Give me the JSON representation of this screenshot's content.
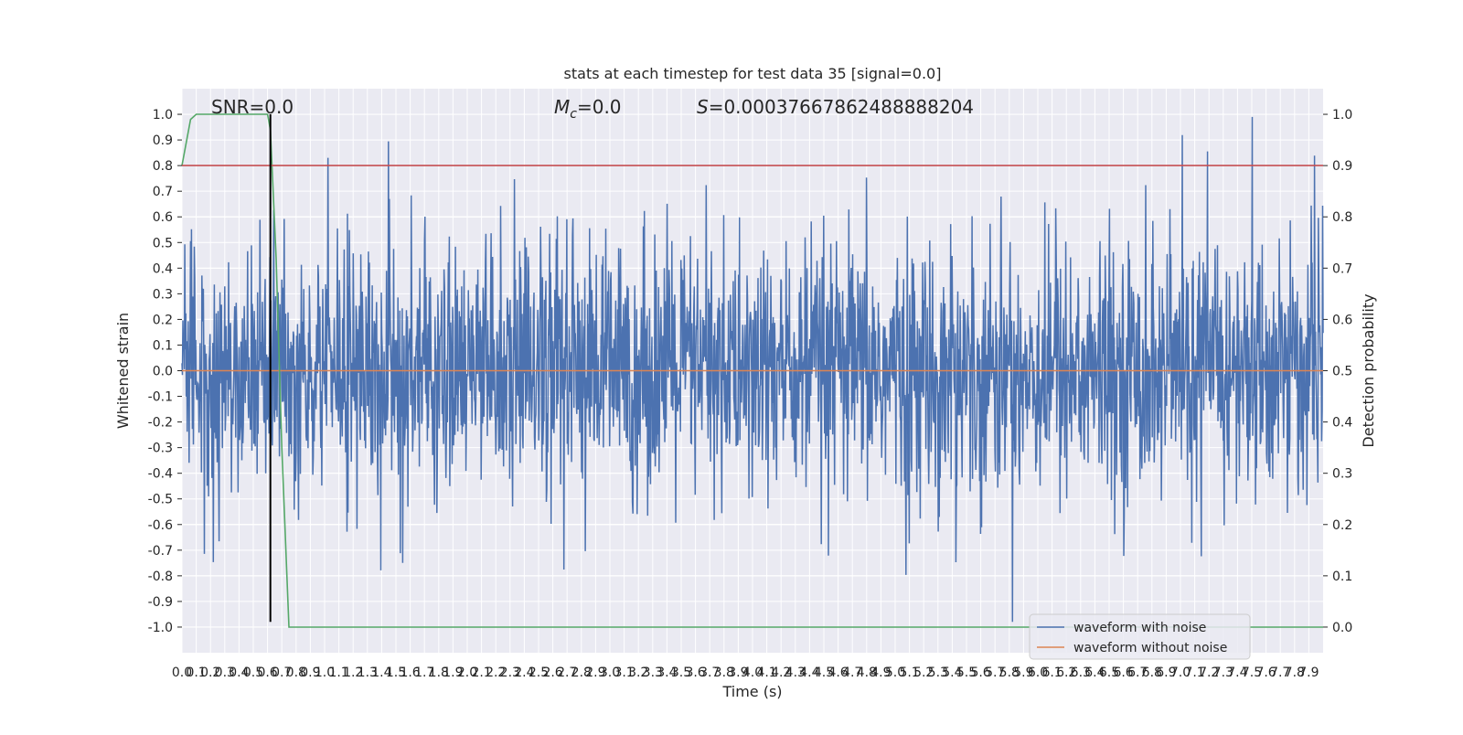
{
  "chart_data": {
    "type": "line",
    "title": "stats at each timestep for test data 35 [signal=0.0]",
    "xlabel": "Time (s)",
    "ylabel": "Whitened strain",
    "y2label": "Detection probability",
    "xlim": [
      0.0,
      8.0
    ],
    "ylim": [
      -1.1,
      1.1
    ],
    "y2lim": [
      -0.05,
      1.05
    ],
    "grid": true,
    "legend_position": "lower-right",
    "annotations": {
      "snr": "SNR=0.0",
      "mc_symbol": "M",
      "mc_sub": "c",
      "mc_value": "=0.0",
      "s_symbol": "S",
      "s_value": "=0.00037667862488888204"
    },
    "x_ticks": [
      "0.0",
      "0.1",
      "0.2",
      "0.3",
      "0.4",
      "0.5",
      "0.6",
      "0.7",
      "0.8",
      "0.9",
      "1.0",
      "1.1",
      "1.2",
      "1.3",
      "1.4",
      "1.5",
      "1.6",
      "1.7",
      "1.8",
      "1.9",
      "2.0",
      "2.1",
      "2.2",
      "2.3",
      "2.4",
      "2.5",
      "2.6",
      "2.7",
      "2.8",
      "2.9",
      "3.0",
      "3.1",
      "3.2",
      "3.3",
      "3.4",
      "3.5",
      "3.6",
      "3.7",
      "3.8",
      "3.9",
      "4.0",
      "4.1",
      "4.2",
      "4.3",
      "4.4",
      "4.5",
      "4.6",
      "4.7",
      "4.8",
      "4.9",
      "5.0",
      "5.1",
      "5.2",
      "5.3",
      "5.4",
      "5.5",
      "5.6",
      "5.7",
      "5.8",
      "5.9",
      "6.0",
      "6.1",
      "6.2",
      "6.3",
      "6.4",
      "6.5",
      "6.6",
      "6.7",
      "6.8",
      "6.9",
      "7.0",
      "7.1",
      "7.2",
      "7.3",
      "7.4",
      "7.5",
      "7.6",
      "7.7",
      "7.8",
      "7.9"
    ],
    "y_ticks": [
      "-1.0",
      "-0.9",
      "-0.8",
      "-0.7",
      "-0.6",
      "-0.5",
      "-0.4",
      "-0.3",
      "-0.2",
      "-0.1",
      "0.0",
      "0.1",
      "0.2",
      "0.3",
      "0.4",
      "0.5",
      "0.6",
      "0.7",
      "0.8",
      "0.9",
      "1.0"
    ],
    "y2_ticks": [
      "0.0",
      "0.1",
      "0.2",
      "0.3",
      "0.4",
      "0.5",
      "0.6",
      "0.7",
      "0.8",
      "0.9",
      "1.0"
    ],
    "series": [
      {
        "name": "waveform with noise",
        "axis": "left",
        "color": "#4c72b0",
        "style": "dense noise, peaks to about ±1.0"
      },
      {
        "name": "waveform without noise",
        "axis": "left",
        "color": "#dd8452",
        "x": [
          0.0,
          8.0
        ],
        "y": [
          0.0,
          0.0
        ]
      },
      {
        "axis": "right",
        "color": "#55a868",
        "x": [
          0.0,
          0.06,
          0.1,
          0.2,
          0.3,
          0.4,
          0.5,
          0.6,
          0.62,
          0.66,
          0.7,
          0.75,
          1.0,
          2.0,
          4.0,
          6.0,
          8.0
        ],
        "y": [
          0.9,
          0.99,
          1.0,
          1.0,
          1.0,
          1.0,
          1.0,
          1.0,
          0.97,
          0.72,
          0.35,
          0.0,
          0.0,
          0.0,
          0.0,
          0.0,
          0.0
        ]
      },
      {
        "axis": "right",
        "color": "#c44e52",
        "x": [
          0.0,
          8.0
        ],
        "y": [
          0.9,
          0.9
        ]
      },
      {
        "axis": "left",
        "color": "#000000",
        "x": [
          0.62,
          0.62
        ],
        "y": [
          -0.98,
          1.0
        ]
      }
    ]
  }
}
